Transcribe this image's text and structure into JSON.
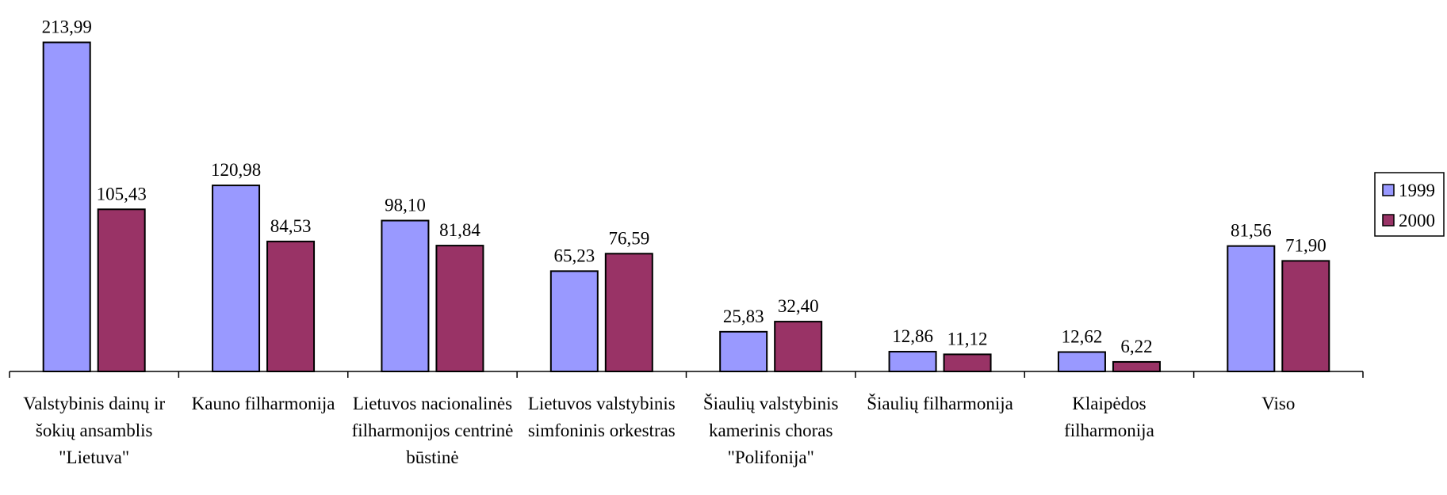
{
  "chart_data": {
    "type": "bar",
    "categories": [
      "Valstybinis dainų ir šokių ansamblis \"Lietuva\"",
      "Kauno filharmonija",
      "Lietuvos nacionalinės filharmonijos centrinė būstinė",
      "Lietuvos valstybinis simfoninis orkestras",
      "Šiaulių valstybinis kamerinis choras \"Polifonija\"",
      "Šiaulių filharmonija",
      "Klaipėdos filharmonija",
      "Viso"
    ],
    "series": [
      {
        "name": "1999",
        "color": "#9999ff",
        "values": [
          213.99,
          120.98,
          98.1,
          65.23,
          25.83,
          12.86,
          12.62,
          81.56
        ],
        "value_labels": [
          "213,99",
          "120,98",
          "98,10",
          "65,23",
          "25,83",
          "12,86",
          "12,62",
          "81,56"
        ]
      },
      {
        "name": "2000",
        "color": "#993366",
        "values": [
          105.43,
          84.53,
          81.84,
          76.59,
          32.4,
          11.12,
          6.22,
          71.9
        ],
        "value_labels": [
          "105,43",
          "84,53",
          "81,84",
          "76,59",
          "32,40",
          "11,12",
          "6,22",
          "71,90"
        ]
      }
    ],
    "ylim": [
      0,
      240
    ],
    "legend": "right"
  }
}
